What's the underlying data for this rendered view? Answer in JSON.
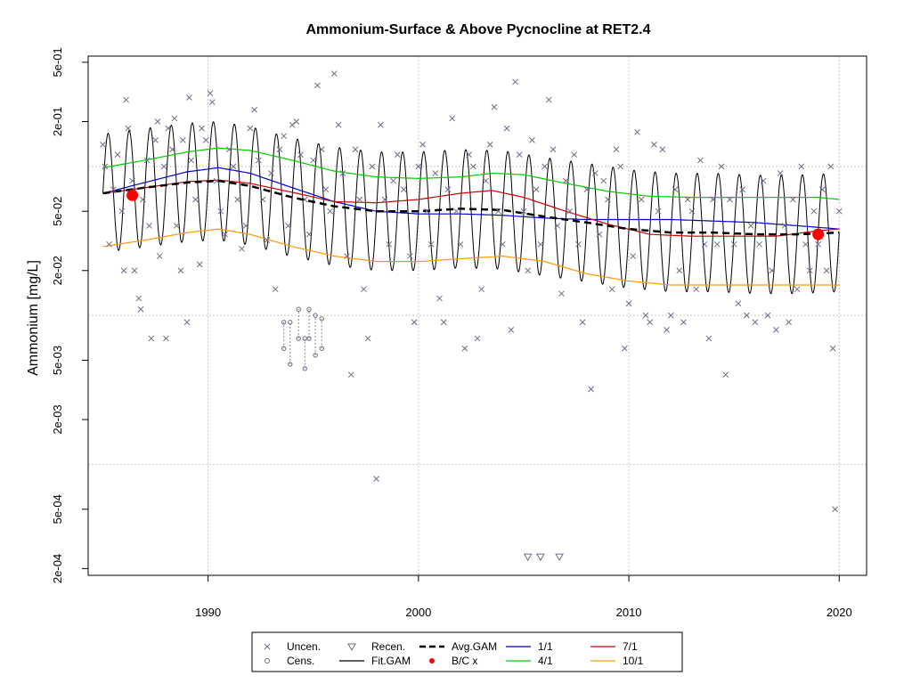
{
  "chart_data": {
    "type": "scatter",
    "title": "Ammonium-Surface & Above Pycnocline at RET2.4",
    "xlabel": "",
    "ylabel": "Ammonium [mg/L]",
    "x_scale": "linear",
    "y_scale": "log",
    "xlim": [
      1984.3,
      2021.3
    ],
    "ylim": [
      0.00018,
      0.55
    ],
    "x_ticks": [
      1990,
      2000,
      2010,
      2020
    ],
    "x_tick_labels": [
      "1990",
      "2000",
      "2010",
      "2020"
    ],
    "y_ticks": [
      0.0002,
      0.0005,
      0.002,
      0.005,
      0.02,
      0.05,
      0.2,
      0.5
    ],
    "y_tick_labels": [
      "2e-04",
      "5e-04",
      "2e-03",
      "5e-03",
      "2e-02",
      "5e-02",
      "2e-01",
      "5e-01"
    ],
    "grid_y": [
      0.0001,
      0.001,
      0.01,
      0.1,
      1
    ],
    "grid_x": [
      1990,
      2000,
      2010,
      2020
    ],
    "legend_position": "bottom-center",
    "legend": [
      {
        "key": "uncen",
        "label": "Uncen.",
        "symbol": "x",
        "color": "#6b6e8c"
      },
      {
        "key": "cens",
        "label": "Cens.",
        "symbol": "o",
        "color": "#6b6e8c"
      },
      {
        "key": "recen",
        "label": "Recen.",
        "symbol": "triangle-down",
        "color": "#6b6e8c"
      },
      {
        "key": "fitgam",
        "label": "Fit.GAM",
        "symbol": "line",
        "color": "#000000"
      },
      {
        "key": "avggam",
        "label": "Avg.GAM",
        "symbol": "dashed",
        "color": "#000000"
      },
      {
        "key": "bc",
        "label": "B/C x",
        "symbol": "dot",
        "color": "#ff0000"
      },
      {
        "key": "s11",
        "label": "1/1",
        "symbol": "line",
        "color": "#0000cc"
      },
      {
        "key": "s41",
        "label": "4/1",
        "symbol": "line",
        "color": "#00cc00"
      },
      {
        "key": "s71",
        "label": "7/1",
        "symbol": "line",
        "color": "#cc0000"
      },
      {
        "key": "s101",
        "label": "10/1",
        "symbol": "line",
        "color": "#ff9900"
      }
    ],
    "series": [
      {
        "key": "s41",
        "color": "#00cc00",
        "x": [
          1985,
          1987,
          1989,
          1990.5,
          1992,
          1994,
          1996,
          1998,
          2000,
          2002,
          2003.5,
          2005,
          2007,
          2009,
          2011,
          2013,
          2015,
          2017,
          2019,
          2020
        ],
        "y": [
          0.098,
          0.11,
          0.125,
          0.133,
          0.128,
          0.11,
          0.093,
          0.085,
          0.083,
          0.085,
          0.09,
          0.088,
          0.077,
          0.068,
          0.063,
          0.062,
          0.062,
          0.062,
          0.062,
          0.06
        ]
      },
      {
        "key": "s11",
        "color": "#0000cc",
        "x": [
          1985,
          1987,
          1989,
          1990.5,
          1992,
          1994,
          1996,
          1998,
          2000,
          2002,
          2004,
          2006,
          2008,
          2010,
          2012,
          2014,
          2016,
          2018,
          2020
        ],
        "y": [
          0.066,
          0.078,
          0.092,
          0.098,
          0.09,
          0.072,
          0.058,
          0.05,
          0.048,
          0.048,
          0.047,
          0.045,
          0.044,
          0.044,
          0.044,
          0.043,
          0.042,
          0.04,
          0.038
        ]
      },
      {
        "key": "s71",
        "color": "#cc0000",
        "x": [
          1985,
          1987,
          1989,
          1990.5,
          1992,
          1994,
          1996,
          1998,
          2000,
          2002,
          2003.5,
          2005,
          2007,
          2009,
          2011,
          2013,
          2015,
          2017,
          2019,
          2020
        ],
        "y": [
          0.066,
          0.072,
          0.079,
          0.081,
          0.077,
          0.067,
          0.058,
          0.057,
          0.06,
          0.066,
          0.069,
          0.062,
          0.05,
          0.041,
          0.035,
          0.034,
          0.034,
          0.034,
          0.037,
          0.038
        ]
      },
      {
        "key": "s101",
        "color": "#ff9900",
        "x": [
          1985,
          1987,
          1989,
          1990.5,
          1992,
          1994,
          1996,
          1998,
          2000,
          2002,
          2004,
          2006,
          2008,
          2010,
          2012,
          2014,
          2016,
          2018,
          2020
        ],
        "y": [
          0.029,
          0.032,
          0.036,
          0.038,
          0.035,
          0.029,
          0.025,
          0.023,
          0.023,
          0.024,
          0.025,
          0.023,
          0.019,
          0.017,
          0.016,
          0.016,
          0.016,
          0.016,
          0.016
        ]
      },
      {
        "key": "avggam",
        "color": "#000000",
        "dashed": true,
        "x": [
          1985,
          1987,
          1989,
          1990.5,
          1992,
          1994,
          1996,
          1998,
          2000,
          2002,
          2004,
          2006,
          2008,
          2010,
          2012,
          2014,
          2016,
          2018,
          2020
        ],
        "y": [
          0.066,
          0.072,
          0.078,
          0.08,
          0.074,
          0.062,
          0.054,
          0.05,
          0.05,
          0.052,
          0.051,
          0.046,
          0.042,
          0.038,
          0.036,
          0.036,
          0.035,
          0.035,
          0.036
        ]
      }
    ],
    "fit_gam": {
      "x_start": 1985,
      "x_end": 2020,
      "cycles_per_year": 1,
      "trend_x": [
        1985,
        1987,
        1989,
        1990.5,
        1992,
        1994,
        1996,
        1998,
        2000,
        2002,
        2004,
        2006,
        2008,
        2010,
        2012,
        2014,
        2016,
        2018,
        2020
      ],
      "trend_y": [
        0.066,
        0.072,
        0.078,
        0.08,
        0.074,
        0.062,
        0.054,
        0.05,
        0.05,
        0.052,
        0.051,
        0.046,
        0.042,
        0.038,
        0.036,
        0.036,
        0.035,
        0.035,
        0.036
      ],
      "amplitude_factor": 2.5
    },
    "uncensored": [
      [
        1985,
        0.14
      ],
      [
        1985.1,
        0.1
      ],
      [
        1985.3,
        0.03
      ],
      [
        1985.5,
        0.07
      ],
      [
        1985.7,
        0.12
      ],
      [
        1985.9,
        0.05
      ],
      [
        1986.0,
        0.02
      ],
      [
        1986.1,
        0.28
      ],
      [
        1986.2,
        0.18
      ],
      [
        1986.4,
        0.08
      ],
      [
        1986.5,
        0.02
      ],
      [
        1986.7,
        0.013
      ],
      [
        1986.8,
        0.011
      ],
      [
        1986.9,
        0.06
      ],
      [
        1987.1,
        0.11
      ],
      [
        1987.2,
        0.04
      ],
      [
        1987.3,
        0.007
      ],
      [
        1987.5,
        0.15
      ],
      [
        1987.6,
        0.2
      ],
      [
        1987.7,
        0.025
      ],
      [
        1987.9,
        0.1
      ],
      [
        1988.0,
        0.007
      ],
      [
        1988.1,
        0.18
      ],
      [
        1988.3,
        0.13
      ],
      [
        1988.4,
        0.21
      ],
      [
        1988.5,
        0.04
      ],
      [
        1988.7,
        0.02
      ],
      [
        1988.8,
        0.15
      ],
      [
        1989.0,
        0.009
      ],
      [
        1989.1,
        0.29
      ],
      [
        1989.2,
        0.11
      ],
      [
        1989.4,
        0.06
      ],
      [
        1989.6,
        0.022
      ],
      [
        1989.7,
        0.18
      ],
      [
        1989.9,
        0.15
      ],
      [
        1990.1,
        0.31
      ],
      [
        1990.2,
        0.27
      ],
      [
        1990.4,
        0.08
      ],
      [
        1990.6,
        0.05
      ],
      [
        1990.8,
        0.035
      ],
      [
        1991.0,
        0.13
      ],
      [
        1991.2,
        0.1
      ],
      [
        1991.4,
        0.06
      ],
      [
        1991.6,
        0.028
      ],
      [
        1991.8,
        0.04
      ],
      [
        1992.0,
        0.18
      ],
      [
        1992.2,
        0.24
      ],
      [
        1992.4,
        0.11
      ],
      [
        1992.6,
        0.06
      ],
      [
        1992.8,
        0.032
      ],
      [
        1993.0,
        0.09
      ],
      [
        1993.2,
        0.015
      ],
      [
        1993.4,
        0.13
      ],
      [
        1993.6,
        0.16
      ],
      [
        1993.8,
        0.04
      ],
      [
        1994.0,
        0.19
      ],
      [
        1994.2,
        0.2
      ],
      [
        1994.4,
        0.12
      ],
      [
        1994.6,
        0.06
      ],
      [
        1994.8,
        0.035
      ],
      [
        1995.0,
        0.11
      ],
      [
        1995.2,
        0.35
      ],
      [
        1995.4,
        0.13
      ],
      [
        1995.6,
        0.07
      ],
      [
        1995.8,
        0.05
      ],
      [
        1996.0,
        0.42
      ],
      [
        1996.2,
        0.19
      ],
      [
        1996.4,
        0.09
      ],
      [
        1996.6,
        0.025
      ],
      [
        1996.8,
        0.004
      ],
      [
        1997.0,
        0.13
      ],
      [
        1997.2,
        0.06
      ],
      [
        1997.4,
        0.015
      ],
      [
        1997.6,
        0.007
      ],
      [
        1997.8,
        0.1
      ],
      [
        1998.0,
        0.0008
      ],
      [
        1998.2,
        0.19
      ],
      [
        1998.4,
        0.06
      ],
      [
        1998.6,
        0.03
      ],
      [
        1998.8,
        0.08
      ],
      [
        1999.0,
        0.12
      ],
      [
        1999.3,
        0.07
      ],
      [
        1999.6,
        0.025
      ],
      [
        1999.8,
        0.009
      ],
      [
        2000.0,
        0.1
      ],
      [
        2000.2,
        0.14
      ],
      [
        2000.4,
        0.05
      ],
      [
        2000.6,
        0.03
      ],
      [
        2000.8,
        0.09
      ],
      [
        2001.0,
        0.013
      ],
      [
        2001.2,
        0.009
      ],
      [
        2001.4,
        0.07
      ],
      [
        2001.6,
        0.21
      ],
      [
        2001.8,
        0.05
      ],
      [
        2002.0,
        0.03
      ],
      [
        2002.2,
        0.006
      ],
      [
        2002.4,
        0.12
      ],
      [
        2002.6,
        0.1
      ],
      [
        2002.8,
        0.007
      ],
      [
        2003.0,
        0.015
      ],
      [
        2003.2,
        0.08
      ],
      [
        2003.4,
        0.14
      ],
      [
        2003.6,
        0.25
      ],
      [
        2003.8,
        0.05
      ],
      [
        2004.0,
        0.03
      ],
      [
        2004.2,
        0.18
      ],
      [
        2004.4,
        0.008
      ],
      [
        2004.6,
        0.37
      ],
      [
        2004.8,
        0.12
      ],
      [
        2005.0,
        0.05
      ],
      [
        2005.2,
        0.02
      ],
      [
        2005.4,
        0.15
      ],
      [
        2005.6,
        0.07
      ],
      [
        2005.8,
        0.03
      ],
      [
        2006.0,
        0.1
      ],
      [
        2006.2,
        0.28
      ],
      [
        2006.4,
        0.13
      ],
      [
        2006.6,
        0.04
      ],
      [
        2006.8,
        0.014
      ],
      [
        2007.0,
        0.08
      ],
      [
        2007.2,
        0.05
      ],
      [
        2007.4,
        0.12
      ],
      [
        2007.6,
        0.03
      ],
      [
        2007.8,
        0.009
      ],
      [
        2008.0,
        0.07
      ],
      [
        2008.2,
        0.0032
      ],
      [
        2008.4,
        0.09
      ],
      [
        2008.6,
        0.035
      ],
      [
        2008.8,
        0.08
      ],
      [
        2009.0,
        0.06
      ],
      [
        2009.2,
        0.015
      ],
      [
        2009.4,
        0.13
      ],
      [
        2009.6,
        0.1
      ],
      [
        2009.8,
        0.006
      ],
      [
        2010.0,
        0.012
      ],
      [
        2010.2,
        0.025
      ],
      [
        2010.4,
        0.17
      ],
      [
        2010.6,
        0.06
      ],
      [
        2010.8,
        0.01
      ],
      [
        2011.0,
        0.009
      ],
      [
        2011.2,
        0.14
      ],
      [
        2011.4,
        0.05
      ],
      [
        2011.6,
        0.13
      ],
      [
        2011.8,
        0.008
      ],
      [
        2012.0,
        0.01
      ],
      [
        2012.2,
        0.07
      ],
      [
        2012.4,
        0.02
      ],
      [
        2012.6,
        0.009
      ],
      [
        2012.8,
        0.06
      ],
      [
        2013.0,
        0.05
      ],
      [
        2013.2,
        0.015
      ],
      [
        2013.4,
        0.11
      ],
      [
        2013.6,
        0.03
      ],
      [
        2013.8,
        0.007
      ],
      [
        2014.0,
        0.06
      ],
      [
        2014.2,
        0.03
      ],
      [
        2014.4,
        0.1
      ],
      [
        2014.6,
        0.004
      ],
      [
        2014.8,
        0.06
      ],
      [
        2015.0,
        0.03
      ],
      [
        2015.2,
        0.012
      ],
      [
        2015.4,
        0.07
      ],
      [
        2015.6,
        0.01
      ],
      [
        2015.8,
        0.04
      ],
      [
        2016.0,
        0.009
      ],
      [
        2016.2,
        0.03
      ],
      [
        2016.4,
        0.08
      ],
      [
        2016.6,
        0.01
      ],
      [
        2016.8,
        0.02
      ],
      [
        2017.0,
        0.008
      ],
      [
        2017.2,
        0.09
      ],
      [
        2017.4,
        0.04
      ],
      [
        2017.6,
        0.009
      ],
      [
        2017.8,
        0.06
      ],
      [
        2018.0,
        0.015
      ],
      [
        2018.2,
        0.1
      ],
      [
        2018.4,
        0.03
      ],
      [
        2018.6,
        0.02
      ],
      [
        2018.8,
        0.05
      ],
      [
        2019.0,
        0.03
      ],
      [
        2019.2,
        0.07
      ],
      [
        2019.4,
        0.02
      ],
      [
        2019.6,
        0.1
      ],
      [
        2019.7,
        0.006
      ],
      [
        2019.8,
        0.0005
      ],
      [
        2020.0,
        0.05
      ]
    ],
    "censored": [
      {
        "x": 1993.6,
        "low": 0.006,
        "high": 0.009
      },
      {
        "x": 1993.9,
        "low": 0.0047,
        "high": 0.009
      },
      {
        "x": 1994.3,
        "low": 0.007,
        "high": 0.011
      },
      {
        "x": 1994.6,
        "low": 0.0044,
        "high": 0.007
      },
      {
        "x": 1994.8,
        "low": 0.007,
        "high": 0.011
      },
      {
        "x": 1995.1,
        "low": 0.0054,
        "high": 0.01
      },
      {
        "x": 1995.4,
        "low": 0.006,
        "high": 0.0095
      }
    ],
    "recensored": [
      [
        2005.2,
        0.00024
      ],
      [
        2005.8,
        0.00024
      ],
      [
        2006.7,
        0.00024
      ]
    ],
    "bc_points": [
      [
        1986.4,
        0.064
      ],
      [
        2019.0,
        0.035
      ]
    ]
  }
}
